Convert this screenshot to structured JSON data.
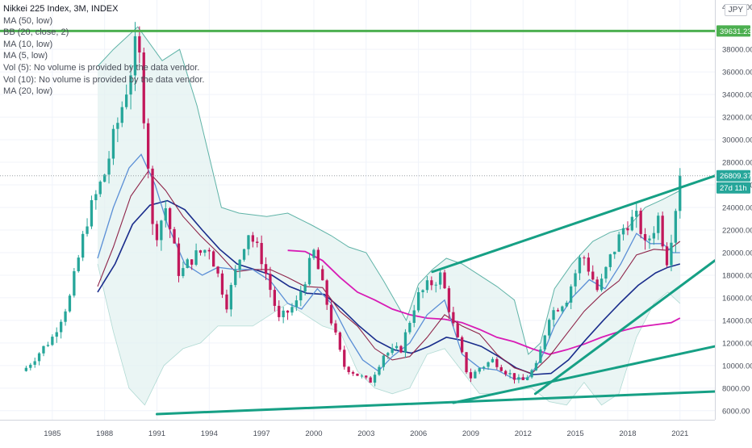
{
  "legend": {
    "title": "Nikkei 225 Index, 3M, INDEX",
    "indicators": [
      "MA (50, low)",
      "BB (20, close, 2)",
      "MA (10, low)",
      "MA (5, low)",
      "Vol (5): No volume is provided by the data vendor.",
      "Vol (10): No volume is provided by the data vendor.",
      "MA (20, low)"
    ]
  },
  "currency": "JPY",
  "colors": {
    "up": "#26a69a",
    "down": "#c2185b",
    "trendline": "#16a085",
    "resistance": "#4caf50",
    "bb_fill": "#e3f2f0",
    "bb_line": "#5fb3a7",
    "ma5": "#5b8fd6",
    "ma10": "#8e2449",
    "ma20": "#1a2d8c",
    "ma50": "#d81bb5",
    "price_badge": "#26a69a"
  },
  "chart_data": {
    "type": "candlestick",
    "y_axis": {
      "min": 5200,
      "max": 40800,
      "ticks": [
        6000,
        8000,
        10000,
        12000,
        14000,
        16000,
        18000,
        20000,
        22000,
        24000,
        26000,
        28000,
        30000,
        32000,
        34000,
        36000,
        38000
      ],
      "tick_labels": [
        "6000.00",
        "8000.00",
        "10000.00",
        "12000.00",
        "14000.00",
        "16000.00",
        "18000.00",
        "20000.00",
        "22000.00",
        "24000.00",
        "26000.00",
        "28000.00",
        "30000.00",
        "32000.00",
        "34000.00",
        "36000.00",
        "38000.00"
      ],
      "partial_top_label": "40000.00"
    },
    "x_axis": {
      "min": 1982.0,
      "max": 2023.0,
      "tick_values": [
        1985,
        1988,
        1991,
        1994,
        1997,
        2000,
        2003,
        2006,
        2009,
        2012,
        2015,
        2018,
        2021
      ],
      "tick_labels": [
        "1985",
        "1988",
        "1991",
        "1994",
        "1997",
        "2000",
        "2003",
        "2006",
        "2009",
        "2012",
        "2015",
        "2018",
        "2021"
      ]
    },
    "resistance": {
      "value": 39631.23,
      "label": "39631.23"
    },
    "last_price": {
      "value": 26809.37,
      "label": "26809.37",
      "countdown": "27d 11h"
    },
    "candles_key_points": [
      [
        1983.5,
        9800
      ],
      [
        1985.0,
        12500
      ],
      [
        1986.0,
        16000
      ],
      [
        1987.0,
        23000
      ],
      [
        1988.0,
        27000
      ],
      [
        1989.0,
        33000
      ],
      [
        1989.9,
        38900
      ],
      [
        1990.5,
        28000
      ],
      [
        1990.8,
        21000
      ],
      [
        1991.5,
        24000
      ],
      [
        1992.3,
        18000
      ],
      [
        1993.0,
        19500
      ],
      [
        1994.0,
        20500
      ],
      [
        1995.0,
        15500
      ],
      [
        1996.2,
        22000
      ],
      [
        1997.0,
        19500
      ],
      [
        1998.0,
        14000
      ],
      [
        1999.0,
        15500
      ],
      [
        2000.0,
        20000
      ],
      [
        2001.0,
        14000
      ],
      [
        2001.7,
        10000
      ],
      [
        2002.5,
        9200
      ],
      [
        2003.2,
        8500
      ],
      [
        2004.0,
        11000
      ],
      [
        2005.0,
        11500
      ],
      [
        2005.9,
        16000
      ],
      [
        2006.5,
        17000
      ],
      [
        2007.3,
        18000
      ],
      [
        2008.0,
        13500
      ],
      [
        2008.9,
        8800
      ],
      [
        2009.5,
        9800
      ],
      [
        2010.3,
        10500
      ],
      [
        2011.0,
        9500
      ],
      [
        2011.9,
        8500
      ],
      [
        2012.8,
        10000
      ],
      [
        2013.5,
        14500
      ],
      [
        2014.5,
        16000
      ],
      [
        2015.4,
        20000
      ],
      [
        2016.3,
        16500
      ],
      [
        2017.0,
        19500
      ],
      [
        2017.9,
        22700
      ],
      [
        2018.6,
        23000
      ],
      [
        2019.0,
        20500
      ],
      [
        2019.8,
        23300
      ],
      [
        2020.2,
        19000
      ],
      [
        2020.6,
        22500
      ],
      [
        2021.0,
        26809
      ]
    ],
    "bollinger": {
      "upper": [
        [
          1987.6,
          36500
        ],
        [
          1988.5,
          38000
        ],
        [
          1989.9,
          40000
        ],
        [
          1991.3,
          37000
        ],
        [
          1992.3,
          38000
        ],
        [
          1993.3,
          33000
        ],
        [
          1994.7,
          24000
        ],
        [
          1995.7,
          23500
        ],
        [
          1997.3,
          23200
        ],
        [
          1998.5,
          23500
        ],
        [
          1999.8,
          22500
        ],
        [
          2001.0,
          21500
        ],
        [
          2002.0,
          20500
        ],
        [
          2003.0,
          20000
        ],
        [
          2004.0,
          17500
        ],
        [
          2005.3,
          14000
        ],
        [
          2006.0,
          17200
        ],
        [
          2006.8,
          18500
        ],
        [
          2007.6,
          19500
        ],
        [
          2008.5,
          19000
        ],
        [
          2009.5,
          18000
        ],
        [
          2010.5,
          17000
        ],
        [
          2011.5,
          15800
        ],
        [
          2012.3,
          11000
        ],
        [
          2013.0,
          12000
        ],
        [
          2013.8,
          16800
        ],
        [
          2014.8,
          19000
        ],
        [
          2016.0,
          21000
        ],
        [
          2017.0,
          21800
        ],
        [
          2018.0,
          22200
        ],
        [
          2019.0,
          24000
        ],
        [
          2020.0,
          24700
        ],
        [
          2021.0,
          25500
        ]
      ],
      "lower": [
        [
          1987.6,
          19000
        ],
        [
          1988.5,
          13000
        ],
        [
          1989.4,
          8000
        ],
        [
          1990.3,
          6500
        ],
        [
          1991.4,
          10000
        ],
        [
          1992.5,
          11500
        ],
        [
          1993.5,
          12000
        ],
        [
          1994.5,
          13500
        ],
        [
          1995.5,
          13500
        ],
        [
          1996.5,
          13500
        ],
        [
          1997.5,
          14500
        ],
        [
          1998.5,
          15500
        ],
        [
          1999.5,
          14500
        ],
        [
          2000.5,
          13500
        ],
        [
          2001.5,
          13000
        ],
        [
          2002.5,
          9500
        ],
        [
          2003.5,
          8000
        ],
        [
          2004.5,
          7500
        ],
        [
          2005.5,
          8000
        ],
        [
          2006.5,
          11000
        ],
        [
          2007.5,
          11500
        ],
        [
          2008.5,
          9500
        ],
        [
          2009.5,
          7500
        ],
        [
          2010.5,
          7500
        ],
        [
          2011.5,
          7800
        ],
        [
          2012.5,
          8000
        ],
        [
          2013.5,
          6800
        ],
        [
          2014.5,
          6500
        ],
        [
          2015.5,
          8500
        ],
        [
          2016.5,
          6500
        ],
        [
          2017.5,
          7500
        ],
        [
          2018.5,
          12500
        ],
        [
          2019.5,
          15500
        ],
        [
          2020.3,
          16500
        ],
        [
          2021.0,
          15500
        ]
      ]
    },
    "ma5": [
      [
        1987.6,
        19500
      ],
      [
        1988.5,
        24000
      ],
      [
        1989.4,
        27500
      ],
      [
        1990.1,
        28700
      ],
      [
        1990.9,
        26000
      ],
      [
        1991.6,
        22500
      ],
      [
        1992.6,
        19000
      ],
      [
        1993.6,
        18000
      ],
      [
        1994.5,
        18700
      ],
      [
        1995.5,
        18500
      ],
      [
        1996.5,
        18500
      ],
      [
        1997.5,
        17500
      ],
      [
        1998.5,
        15500
      ],
      [
        1999.3,
        15000
      ],
      [
        2000.2,
        16800
      ],
      [
        2001.0,
        15500
      ],
      [
        2002.0,
        12500
      ],
      [
        2002.8,
        10500
      ],
      [
        2003.7,
        9500
      ],
      [
        2004.5,
        10800
      ],
      [
        2005.5,
        12000
      ],
      [
        2006.5,
        14500
      ],
      [
        2007.5,
        15800
      ],
      [
        2008.5,
        11000
      ],
      [
        2009.5,
        9800
      ],
      [
        2010.5,
        9600
      ],
      [
        2011.5,
        8800
      ],
      [
        2012.3,
        8900
      ],
      [
        2013.0,
        10500
      ],
      [
        2013.8,
        13500
      ],
      [
        2014.8,
        16000
      ],
      [
        2015.8,
        17600
      ],
      [
        2016.7,
        16800
      ],
      [
        2017.6,
        19000
      ],
      [
        2018.5,
        21700
      ],
      [
        2019.3,
        20800
      ],
      [
        2020.0,
        20800
      ],
      [
        2020.6,
        20000
      ],
      [
        2021.0,
        20000
      ]
    ],
    "ma10": [
      [
        1987.6,
        17000
      ],
      [
        1988.5,
        20500
      ],
      [
        1989.5,
        25000
      ],
      [
        1990.5,
        27200
      ],
      [
        1991.5,
        25500
      ],
      [
        1992.5,
        23200
      ],
      [
        1993.5,
        21500
      ],
      [
        1994.5,
        20000
      ],
      [
        1995.5,
        18300
      ],
      [
        1996.5,
        18500
      ],
      [
        1997.5,
        18500
      ],
      [
        1998.5,
        17800
      ],
      [
        1999.5,
        17000
      ],
      [
        2000.5,
        16900
      ],
      [
        2001.5,
        14800
      ],
      [
        2002.5,
        13500
      ],
      [
        2003.5,
        11500
      ],
      [
        2004.5,
        10500
      ],
      [
        2005.5,
        10800
      ],
      [
        2006.5,
        12500
      ],
      [
        2007.5,
        14500
      ],
      [
        2008.5,
        13500
      ],
      [
        2009.5,
        12800
      ],
      [
        2010.5,
        11000
      ],
      [
        2011.5,
        9800
      ],
      [
        2012.5,
        9300
      ],
      [
        2013.5,
        10800
      ],
      [
        2014.5,
        12800
      ],
      [
        2015.5,
        14800
      ],
      [
        2016.5,
        16300
      ],
      [
        2017.5,
        17500
      ],
      [
        2018.5,
        19800
      ],
      [
        2019.5,
        20300
      ],
      [
        2020.3,
        20200
      ],
      [
        2021.0,
        21000
      ]
    ],
    "ma20": [
      [
        1987.6,
        16500
      ],
      [
        1988.6,
        19000
      ],
      [
        1989.6,
        22500
      ],
      [
        1990.6,
        24200
      ],
      [
        1991.6,
        24600
      ],
      [
        1992.6,
        23800
      ],
      [
        1993.6,
        22000
      ],
      [
        1994.6,
        20300
      ],
      [
        1995.6,
        19000
      ],
      [
        1996.6,
        18500
      ],
      [
        1997.6,
        18000
      ],
      [
        1998.6,
        17000
      ],
      [
        1999.6,
        16400
      ],
      [
        2000.6,
        16300
      ],
      [
        2001.6,
        15000
      ],
      [
        2002.6,
        13500
      ],
      [
        2003.6,
        12200
      ],
      [
        2004.6,
        11400
      ],
      [
        2005.6,
        11100
      ],
      [
        2006.6,
        11700
      ],
      [
        2007.6,
        12500
      ],
      [
        2008.6,
        12200
      ],
      [
        2009.6,
        11700
      ],
      [
        2010.6,
        10800
      ],
      [
        2011.6,
        9800
      ],
      [
        2012.6,
        9200
      ],
      [
        2013.6,
        9300
      ],
      [
        2014.6,
        10500
      ],
      [
        2015.6,
        12300
      ],
      [
        2016.6,
        14000
      ],
      [
        2017.6,
        15600
      ],
      [
        2018.6,
        17100
      ],
      [
        2019.6,
        18200
      ],
      [
        2020.3,
        18700
      ],
      [
        2021.0,
        19000
      ]
    ],
    "ma50": [
      [
        1998.5,
        20200
      ],
      [
        1999.5,
        20100
      ],
      [
        2000.5,
        19300
      ],
      [
        2001.5,
        17800
      ],
      [
        2002.5,
        16500
      ],
      [
        2003.5,
        15800
      ],
      [
        2004.5,
        15000
      ],
      [
        2005.5,
        14500
      ],
      [
        2006.5,
        14200
      ],
      [
        2007.5,
        14100
      ],
      [
        2008.5,
        13800
      ],
      [
        2009.5,
        13200
      ],
      [
        2010.5,
        12500
      ],
      [
        2011.5,
        12100
      ],
      [
        2012.5,
        11500
      ],
      [
        2013.5,
        11000
      ],
      [
        2014.5,
        11400
      ],
      [
        2015.5,
        11900
      ],
      [
        2016.5,
        12500
      ],
      [
        2017.5,
        13000
      ],
      [
        2018.5,
        13400
      ],
      [
        2019.5,
        13600
      ],
      [
        2020.5,
        13800
      ],
      [
        2021.0,
        14200
      ]
    ],
    "trendlines": [
      {
        "from": [
          2006.8,
          18300
        ],
        "to": [
          2023.0,
          26800
        ]
      },
      {
        "from": [
          2012.7,
          7500
        ],
        "to": [
          2023.0,
          19300
        ]
      },
      {
        "from": [
          2008.0,
          6700
        ],
        "to": [
          2023.0,
          11700
        ]
      },
      {
        "from": [
          1991.0,
          5700
        ],
        "to": [
          2023.0,
          7700
        ]
      }
    ]
  }
}
